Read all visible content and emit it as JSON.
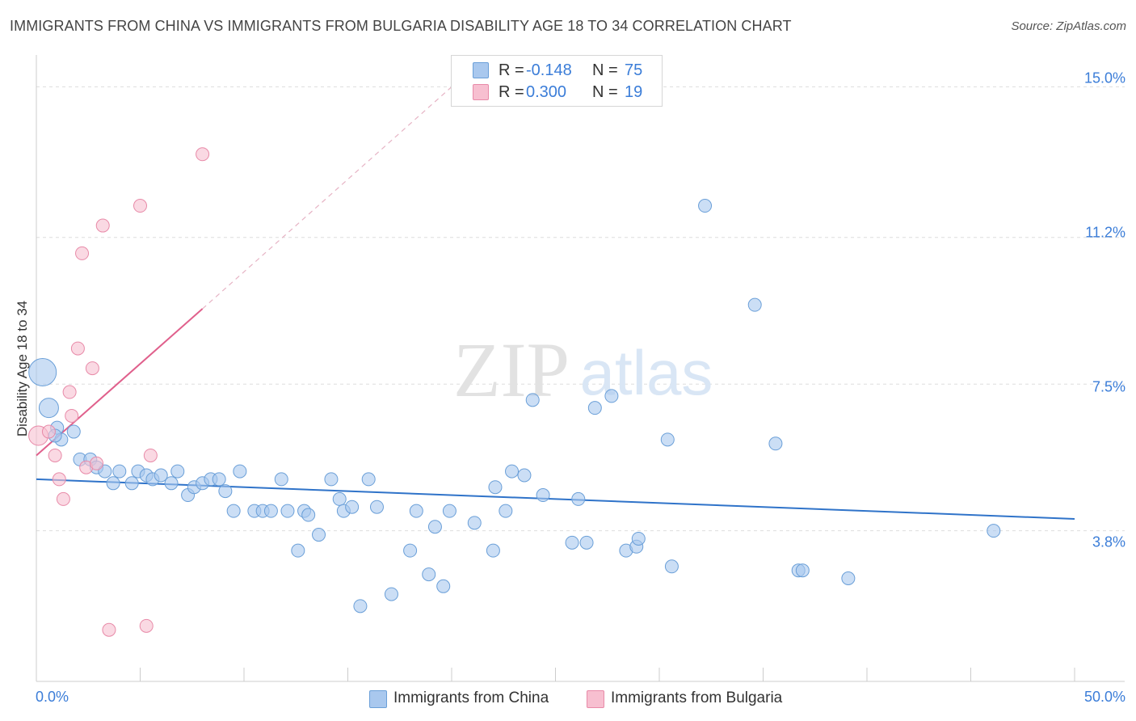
{
  "title": "IMMIGRANTS FROM CHINA VS IMMIGRANTS FROM BULGARIA DISABILITY AGE 18 TO 34 CORRELATION CHART",
  "source": "Source: ZipAtlas.com",
  "watermark": {
    "zip": "ZIP",
    "atlas": "atlas"
  },
  "stats": {
    "china": {
      "r_label": "R = ",
      "r_value": "-0.148",
      "n_label": "N = ",
      "n_value": "75"
    },
    "bulgaria": {
      "r_label": "R = ",
      "r_value": "0.300",
      "n_label": "N = ",
      "n_value": "19"
    }
  },
  "legend": {
    "china": "Immigrants from China",
    "bulgaria": "Immigrants from Bulgaria"
  },
  "colors": {
    "china_fill": "#a9c8ee",
    "china_stroke": "#6a9fd8",
    "china_line": "#2f73c9",
    "bulgaria_fill": "#f7bfd0",
    "bulgaria_stroke": "#e88aa8",
    "bulgaria_line": "#e0608c",
    "tick_text": "#3b7dd8",
    "grid": "#dddddd"
  },
  "chart_data": {
    "type": "scatter",
    "title": "IMMIGRANTS FROM CHINA VS IMMIGRANTS FROM BULGARIA DISABILITY AGE 18 TO 34 CORRELATION CHART",
    "xlabel": "",
    "ylabel": "Disability Age 18 to 34",
    "xlim": [
      0,
      50
    ],
    "ylim": [
      0,
      15.6
    ],
    "x_tick_labels": [
      "0.0%",
      "50.0%"
    ],
    "y_ticks": [
      3.8,
      7.5,
      11.2,
      15.0
    ],
    "y_tick_labels": [
      "3.8%",
      "7.5%",
      "11.2%",
      "15.0%"
    ],
    "grid": true,
    "series": [
      {
        "name": "Immigrants from China",
        "points": [
          [
            0.3,
            7.8,
            3
          ],
          [
            0.6,
            6.9,
            2
          ],
          [
            1.0,
            6.4,
            1
          ],
          [
            1.2,
            6.1,
            1
          ],
          [
            1.8,
            6.3,
            1
          ],
          [
            2.1,
            5.6,
            1
          ],
          [
            2.6,
            5.6,
            1
          ],
          [
            2.9,
            5.4,
            1
          ],
          [
            3.3,
            5.3,
            1
          ],
          [
            3.7,
            5.0,
            1
          ],
          [
            4.0,
            5.3,
            1
          ],
          [
            4.6,
            5.0,
            1
          ],
          [
            4.9,
            5.3,
            1
          ],
          [
            5.3,
            5.2,
            1
          ],
          [
            5.6,
            5.1,
            1
          ],
          [
            6.0,
            5.2,
            1
          ],
          [
            6.5,
            5.0,
            1
          ],
          [
            6.8,
            5.3,
            1
          ],
          [
            7.3,
            4.7,
            1
          ],
          [
            7.6,
            4.9,
            1
          ],
          [
            8.0,
            5.0,
            1
          ],
          [
            8.4,
            5.1,
            1
          ],
          [
            8.8,
            5.1,
            1
          ],
          [
            9.1,
            4.8,
            1
          ],
          [
            9.5,
            4.3,
            1
          ],
          [
            9.8,
            5.3,
            1
          ],
          [
            10.5,
            4.3,
            1
          ],
          [
            10.9,
            4.3,
            1
          ],
          [
            11.3,
            4.3,
            1
          ],
          [
            11.8,
            5.1,
            1
          ],
          [
            12.1,
            4.3,
            1
          ],
          [
            12.6,
            3.3,
            1
          ],
          [
            12.9,
            4.3,
            1
          ],
          [
            13.1,
            4.2,
            1
          ],
          [
            13.6,
            3.7,
            1
          ],
          [
            14.2,
            5.1,
            1
          ],
          [
            14.6,
            4.6,
            1
          ],
          [
            14.8,
            4.3,
            1
          ],
          [
            15.2,
            4.4,
            1
          ],
          [
            15.6,
            1.9,
            1
          ],
          [
            16.0,
            5.1,
            1
          ],
          [
            16.4,
            4.4,
            1
          ],
          [
            17.1,
            2.2,
            1
          ],
          [
            18.0,
            3.3,
            1
          ],
          [
            18.3,
            4.3,
            1
          ],
          [
            18.9,
            2.7,
            1
          ],
          [
            19.2,
            3.9,
            1
          ],
          [
            19.6,
            2.4,
            1
          ],
          [
            19.9,
            4.3,
            1
          ],
          [
            21.1,
            4.0,
            1
          ],
          [
            22.0,
            3.3,
            1
          ],
          [
            22.1,
            4.9,
            1
          ],
          [
            22.6,
            4.3,
            1
          ],
          [
            22.9,
            5.3,
            1
          ],
          [
            23.5,
            5.2,
            1
          ],
          [
            23.9,
            7.1,
            1
          ],
          [
            24.4,
            4.7,
            1
          ],
          [
            25.8,
            3.5,
            1
          ],
          [
            26.1,
            4.6,
            1
          ],
          [
            26.5,
            3.5,
            1
          ],
          [
            26.9,
            6.9,
            1
          ],
          [
            27.7,
            7.2,
            1
          ],
          [
            28.4,
            3.3,
            1
          ],
          [
            28.9,
            3.4,
            1
          ],
          [
            29.0,
            3.6,
            1
          ],
          [
            30.4,
            6.1,
            1
          ],
          [
            30.6,
            2.9,
            1
          ],
          [
            32.2,
            12.0,
            1
          ],
          [
            34.6,
            9.5,
            1
          ],
          [
            35.6,
            6.0,
            1
          ],
          [
            36.7,
            2.8,
            1
          ],
          [
            36.9,
            2.8,
            1
          ],
          [
            39.1,
            2.6,
            1
          ],
          [
            46.1,
            3.8,
            1
          ],
          [
            0.9,
            6.2,
            1
          ]
        ]
      },
      {
        "name": "Immigrants from Bulgaria",
        "points": [
          [
            0.1,
            6.2,
            2
          ],
          [
            0.6,
            6.3,
            1
          ],
          [
            0.9,
            5.7,
            1
          ],
          [
            1.1,
            5.1,
            1
          ],
          [
            1.3,
            4.6,
            1
          ],
          [
            1.6,
            7.3,
            1
          ],
          [
            1.7,
            6.7,
            1
          ],
          [
            2.0,
            8.4,
            1
          ],
          [
            2.2,
            10.8,
            1
          ],
          [
            2.4,
            5.4,
            1
          ],
          [
            2.7,
            7.9,
            1
          ],
          [
            2.9,
            5.5,
            1
          ],
          [
            3.2,
            11.5,
            1
          ],
          [
            3.5,
            1.3,
            1
          ],
          [
            5.0,
            12.0,
            1
          ],
          [
            5.3,
            1.4,
            1
          ],
          [
            5.5,
            5.7,
            1
          ],
          [
            8.0,
            13.3,
            1
          ]
        ]
      }
    ],
    "trend_lines": [
      {
        "name": "Immigrants from China",
        "x": [
          0,
          50
        ],
        "y": [
          5.1,
          4.1
        ],
        "style": "solid"
      },
      {
        "name": "Immigrants from Bulgaria",
        "x": [
          0,
          8
        ],
        "y": [
          5.7,
          9.4
        ],
        "style": "solid",
        "extended_to": [
          20,
          15.0
        ],
        "extended_style": "dashed"
      }
    ]
  }
}
